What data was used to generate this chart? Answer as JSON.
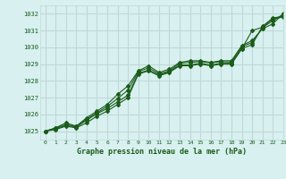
{
  "title": "Graphe pression niveau de la mer (hPa)",
  "bg_color": "#d8f0f0",
  "grid_color": "#c0d8d8",
  "line_color": "#1a5c1a",
  "xlim": [
    -0.5,
    23
  ],
  "ylim": [
    1024.5,
    1032.5
  ],
  "yticks": [
    1025,
    1026,
    1027,
    1028,
    1029,
    1030,
    1031,
    1032
  ],
  "xticks": [
    0,
    1,
    2,
    3,
    4,
    5,
    6,
    7,
    8,
    9,
    10,
    11,
    12,
    13,
    14,
    15,
    16,
    17,
    18,
    19,
    20,
    21,
    22,
    23
  ],
  "series": [
    [
      1025.0,
      1025.1,
      1025.3,
      1025.2,
      1025.5,
      1025.9,
      1026.2,
      1026.6,
      1027.0,
      1028.4,
      1028.6,
      1028.3,
      1028.5,
      1028.9,
      1028.9,
      1029.0,
      1028.9,
      1029.0,
      1029.0,
      1029.9,
      1031.0,
      1031.2,
      1031.7,
      1031.8
    ],
    [
      1025.0,
      1025.15,
      1025.35,
      1025.25,
      1025.65,
      1026.05,
      1026.35,
      1026.75,
      1027.15,
      1028.45,
      1028.65,
      1028.35,
      1028.55,
      1028.95,
      1028.95,
      1029.05,
      1028.95,
      1029.05,
      1029.05,
      1029.95,
      1030.15,
      1031.25,
      1031.75,
      1031.85
    ],
    [
      1025.0,
      1025.2,
      1025.5,
      1025.3,
      1025.8,
      1026.2,
      1026.6,
      1027.2,
      1027.7,
      1028.6,
      1028.9,
      1028.5,
      1028.7,
      1029.1,
      1029.2,
      1029.2,
      1029.1,
      1029.2,
      1029.2,
      1030.1,
      1030.4,
      1031.1,
      1031.4,
      1032.0
    ],
    [
      1025.0,
      1025.18,
      1025.4,
      1025.28,
      1025.72,
      1026.1,
      1026.48,
      1026.95,
      1027.45,
      1028.55,
      1028.78,
      1028.42,
      1028.6,
      1029.05,
      1029.1,
      1029.15,
      1029.08,
      1029.15,
      1029.12,
      1030.05,
      1030.28,
      1031.18,
      1031.58,
      1031.97
    ]
  ]
}
